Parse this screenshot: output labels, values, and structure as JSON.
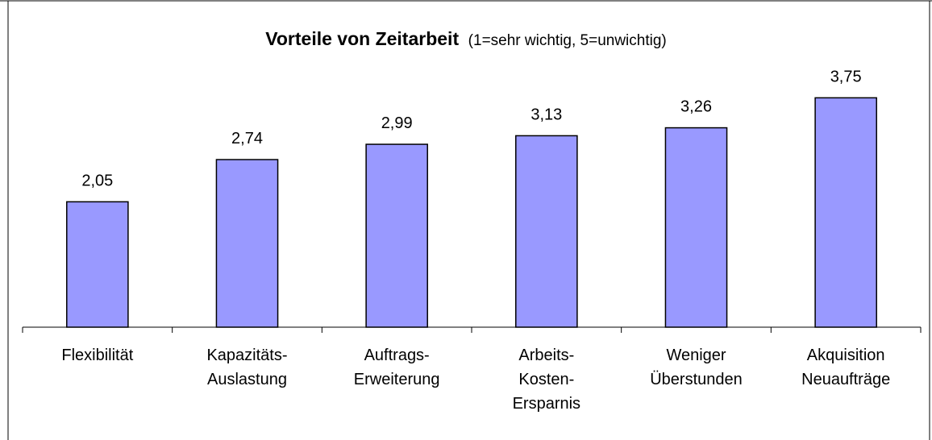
{
  "chart_data": {
    "type": "bar",
    "title": "Vorteile von Zeitarbeit",
    "subtitle": "(1=sehr wichtig, 5=unwichtig)",
    "categories": [
      "Flexibilität",
      "Kapazitäts-\nAuslastung",
      "Auftrags-\nErweiterung",
      "Arbeits-\nKosten-\nErsparnis",
      "Weniger\nÜberstunden",
      "Akquisition\nNeuaufträge"
    ],
    "values": [
      2.05,
      2.74,
      2.99,
      3.13,
      3.26,
      3.75
    ],
    "value_labels": [
      "2,05",
      "2,74",
      "2,99",
      "3,13",
      "3,26",
      "3,75"
    ],
    "color": "#9999ff",
    "ylim": [
      0,
      5
    ]
  }
}
